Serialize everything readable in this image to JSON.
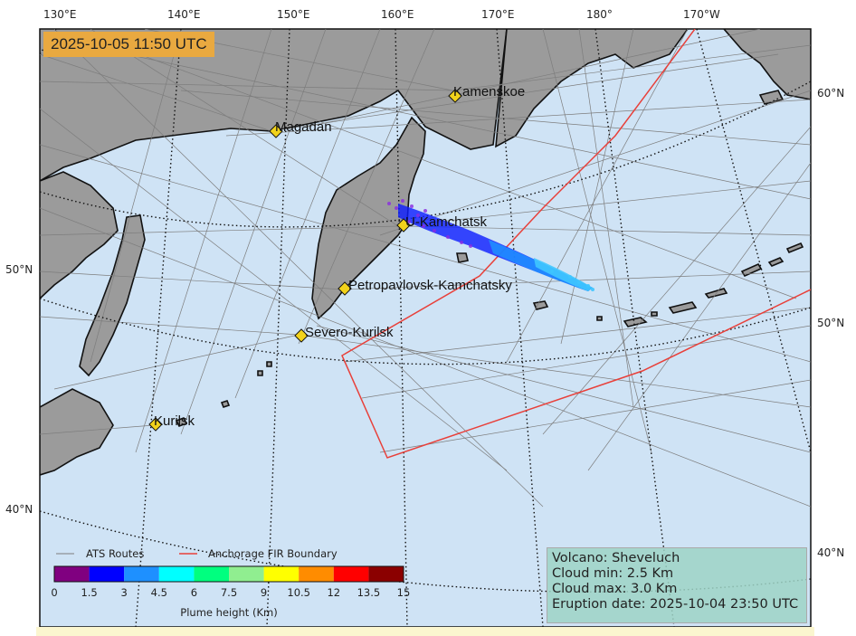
{
  "timestamp": "2025-10-05 11:50 UTC",
  "lon_labels": [
    "130°E",
    "140°E",
    "150°E",
    "160°E",
    "170°E",
    "180°",
    "170°W"
  ],
  "lat_labels_left": [
    "50°N",
    "40°N"
  ],
  "lat_labels_right": [
    "60°N",
    "50°N",
    "40°N"
  ],
  "cities": [
    {
      "name": "Kamenskoe"
    },
    {
      "name": "Magadan"
    },
    {
      "name": "U-Kamchatsk"
    },
    {
      "name": "Petropavlovsk-Kamchatsky"
    },
    {
      "name": "Severo-Kurilsk"
    },
    {
      "name": "Kurilsk"
    }
  ],
  "legend": {
    "ats_routes": "ATS Routes",
    "fir_boundary": "Anchorage FIR Boundary",
    "colorbar_title": "Plume height (Km)",
    "ticks": [
      "0",
      "1.5",
      "3",
      "4.5",
      "6",
      "7.5",
      "9",
      "10.5",
      "12",
      "13.5",
      "15"
    ],
    "colors": [
      "#800080",
      "#0000ff",
      "#1e90ff",
      "#00ffff",
      "#00ff7f",
      "#90ee90",
      "#ffff00",
      "#ff8c00",
      "#ff0000",
      "#8b0000"
    ]
  },
  "info": {
    "volcano": "Volcano: Sheveluch",
    "cloud_min": "Cloud min: 2.5 Km",
    "cloud_max": "Cloud max: 3.0 Km",
    "eruption": "Eruption date: 2025-10-04 23:50 UTC"
  },
  "colors": {
    "ocean": "#cfe3f5",
    "land": "#9b9b9b",
    "fir": "#e8403a",
    "timestamp_bg": "#e9a940"
  }
}
